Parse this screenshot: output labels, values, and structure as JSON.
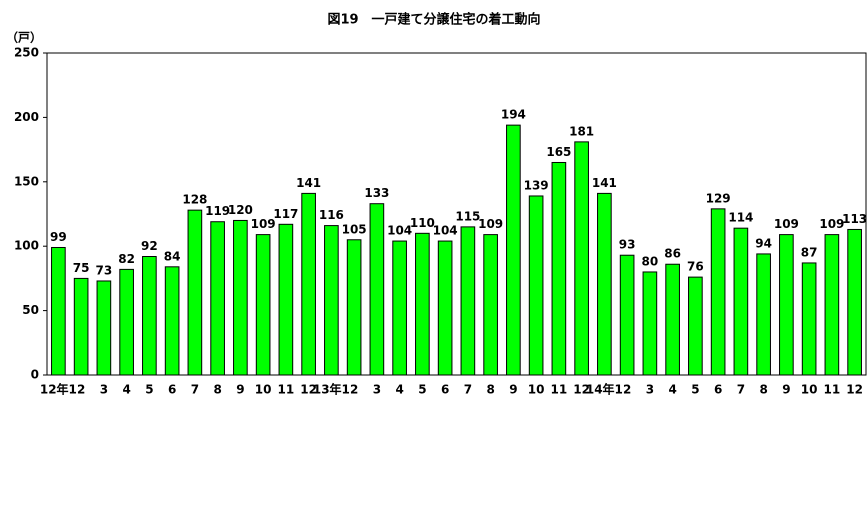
{
  "chart_data": {
    "type": "bar",
    "title": "図19　一戸建て分譲住宅の着工動向",
    "y_unit": "（戸）",
    "categories": [
      "12年1",
      "2",
      "3",
      "4",
      "5",
      "6",
      "7",
      "8",
      "9",
      "10",
      "11",
      "12",
      "13年1",
      "2",
      "3",
      "4",
      "5",
      "6",
      "7",
      "8",
      "9",
      "10",
      "11",
      "12",
      "14年1",
      "2",
      "3",
      "4",
      "5",
      "6",
      "7",
      "8",
      "9",
      "10",
      "11",
      "12"
    ],
    "values": [
      99,
      75,
      73,
      82,
      92,
      84,
      128,
      119,
      120,
      109,
      117,
      141,
      116,
      105,
      133,
      104,
      110,
      104,
      115,
      109,
      194,
      139,
      165,
      181,
      141,
      93,
      80,
      86,
      76,
      129,
      114,
      94,
      109,
      87,
      109,
      113
    ],
    "color": "#00ff00",
    "ylim": [
      0,
      250
    ],
    "yticks": [
      0,
      50,
      100,
      150,
      200,
      250
    ],
    "grid": false
  }
}
